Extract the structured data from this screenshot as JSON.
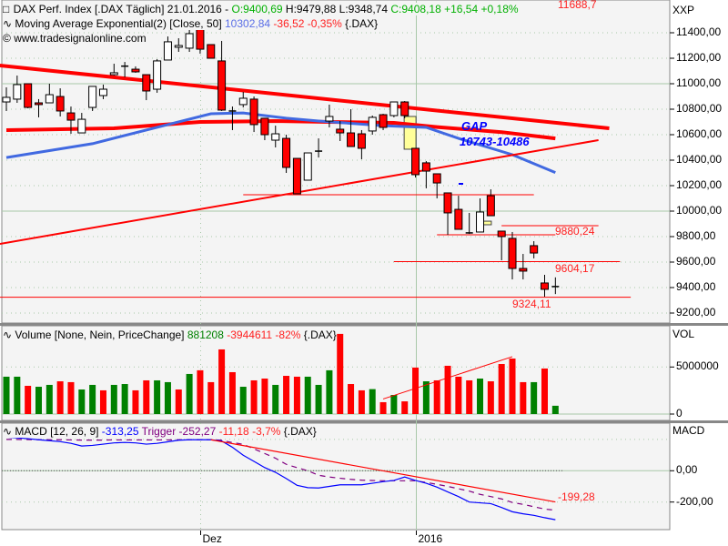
{
  "header": {
    "symbol_line": {
      "name": "DAX Perf. Index [.DAX  Täglich] 21.01.2016 -",
      "open": "O:9400,69",
      "high": "H:9479,88",
      "low": "L:9348,74",
      "close": "C:9408,18",
      "change": "+16,54",
      "change_pct": "+0,18%"
    },
    "ma_line": {
      "name": "Moving Average Exponential(2) [Close, 50]",
      "value": "10302,84",
      "change": "-36,52",
      "change_pct": "-0,35%",
      "symbol": "{.DAX}"
    },
    "watermark": "www.tradesignalonline.com",
    "top_cut_label": "11688,7"
  },
  "volume_header": {
    "name": "Volume [None, Nein, PriceChange]",
    "value": "881208",
    "change": "-3944611",
    "change_pct": "-82%",
    "symbol": "{.DAX}"
  },
  "macd_header": {
    "name": "MACD [12, 26, 9]",
    "value": "-313,25",
    "trigger_label": "Trigger",
    "trigger_value": "-252,27",
    "diff": "-11,18",
    "diff_pct": "-3,7%",
    "symbol": "{.DAX}"
  },
  "colors": {
    "up_candle": "#ffffff",
    "down_candle": "#ff0000",
    "vol_up": "#008000",
    "vol_down": "#ff0000",
    "ema": "#4169e1",
    "macd": "#0000ff",
    "trigger": "#800080",
    "trend": "#ff0000",
    "gap": "#ffff99",
    "bg": "#f4f4f4"
  },
  "chart_data": [
    {
      "type": "candlestick",
      "yaxis_label": "XXP",
      "yticks": [
        11400,
        11200,
        11000,
        10800,
        10600,
        10400,
        10200,
        10000,
        9800,
        9600,
        9400,
        9200
      ],
      "ytick_labels": [
        "11400,00",
        "11200,00",
        "11000,00",
        "10800,00",
        "10600,00",
        "10400,00",
        "10200,00",
        "10000,00",
        "9800,00",
        "9600,00",
        "9400,00",
        "9200,00"
      ],
      "ylim": [
        9130,
        11650
      ],
      "xtick_labels": [
        {
          "index": 18,
          "label": "Dez"
        },
        {
          "index": 38,
          "label": "2016"
        }
      ],
      "ohlc": [
        [
          10857,
          10971,
          10786,
          10893
        ],
        [
          10879,
          11064,
          10850,
          10993
        ],
        [
          11000,
          11000,
          10807,
          10814
        ],
        [
          10850,
          10879,
          10736,
          10836
        ],
        [
          10850,
          11000,
          10850,
          10914
        ],
        [
          10900,
          10964,
          10743,
          10786
        ],
        [
          10771,
          10821,
          10607,
          10714
        ],
        [
          10614,
          10771,
          10614,
          10721
        ],
        [
          10814,
          10979,
          10786,
          10979
        ],
        [
          10907,
          10993,
          10879,
          10957
        ],
        [
          11071,
          11157,
          11064,
          11086
        ],
        [
          11134,
          11171,
          11050,
          11138
        ],
        [
          11114,
          11136,
          11086,
          11093
        ],
        [
          11071,
          11071,
          10871,
          10943
        ],
        [
          10957,
          11193,
          10929,
          11179
        ],
        [
          11186,
          11371,
          11186,
          11329
        ],
        [
          11286,
          11357,
          11250,
          11300
        ],
        [
          11279,
          11443,
          11250,
          11393
        ],
        [
          11429,
          11443,
          11236,
          11271
        ],
        [
          11307,
          11307,
          11200,
          11200
        ],
        [
          11179,
          11336,
          10786,
          10793
        ],
        [
          10786,
          10821,
          10636,
          10779
        ],
        [
          10836,
          10936,
          10814,
          10886
        ],
        [
          10879,
          10900,
          10621,
          10679
        ],
        [
          10729,
          10729,
          10557,
          10600
        ],
        [
          10557,
          10671,
          10500,
          10607
        ],
        [
          10571,
          10600,
          10300,
          10343
        ],
        [
          10414,
          10414,
          10136,
          10136
        ],
        [
          10243,
          10457,
          10243,
          10457
        ],
        [
          10471,
          10571,
          10421,
          10467
        ],
        [
          10707,
          10836,
          10657,
          10743
        ],
        [
          10643,
          10707,
          10550,
          10614
        ],
        [
          10614,
          10800,
          10507,
          10507
        ],
        [
          10607,
          10636,
          10407,
          10493
        ],
        [
          10629,
          10750,
          10600,
          10736
        ],
        [
          10757,
          10764,
          10636,
          10657
        ],
        [
          10750,
          10857,
          10736,
          10857
        ],
        [
          10857,
          10864,
          10729,
          10750
        ],
        [
          10493,
          10493,
          10264,
          10286
        ],
        [
          10379,
          10393,
          10179,
          10314
        ],
        [
          10293,
          10293,
          10100,
          10221
        ],
        [
          10143,
          10143,
          9814,
          9986
        ],
        [
          10014,
          10121,
          9857,
          9857
        ],
        [
          9829,
          9986,
          9821,
          9821
        ],
        [
          9836,
          10100,
          9836,
          9993
        ],
        [
          10121,
          10171,
          9964,
          9964
        ],
        [
          9843,
          9843,
          9614,
          9800
        ],
        [
          9786,
          9836,
          9464,
          9550
        ],
        [
          9550,
          9664,
          9464,
          9529
        ],
        [
          9729,
          9764,
          9629,
          9671
        ],
        [
          9436,
          9500,
          9329,
          9386
        ],
        [
          9401,
          9480,
          9349,
          9408
        ]
      ],
      "ema50": [
        [
          0,
          10421
        ],
        [
          8,
          10529
        ],
        [
          15,
          10679
        ],
        [
          19,
          10764
        ],
        [
          22,
          10771
        ],
        [
          26,
          10729
        ],
        [
          29,
          10707
        ],
        [
          35,
          10671
        ],
        [
          39,
          10657
        ],
        [
          42,
          10571
        ],
        [
          47,
          10443
        ],
        [
          51,
          10303
        ]
      ],
      "red_ma": [
        [
          0,
          10636
        ],
        [
          10,
          10650
        ],
        [
          18,
          10700
        ],
        [
          25,
          10707
        ],
        [
          30,
          10700
        ],
        [
          36,
          10693
        ],
        [
          40,
          10660
        ],
        [
          46,
          10620
        ],
        [
          51,
          10571
        ]
      ],
      "trendlines": [
        {
          "from": [
            -0.6,
            11143
          ],
          "to": [
            56,
            10650
          ],
          "thick": true
        },
        {
          "from": [
            -0.6,
            9743
          ],
          "to": [
            55,
            10557
          ],
          "thick": false
        }
      ],
      "levels": [
        {
          "price": 10129,
          "from": 22,
          "to": 49,
          "label": ""
        },
        {
          "price": 9886,
          "from": 46,
          "to": 55,
          "label": "9880,24"
        },
        {
          "price": 9814,
          "from": 40,
          "to": 51,
          "label": ""
        },
        {
          "price": 9604,
          "from": 36,
          "to": 57,
          "label": "9604,17"
        },
        {
          "price": 9324,
          "from": -0.6,
          "to": 58,
          "label": "9324,11"
        }
      ],
      "gaps": [
        {
          "index": 37.5,
          "top": 10743,
          "bottom": 10486,
          "label_title": "GAP",
          "label_range": "10743-10486"
        },
        {
          "index": 44.5,
          "top": 9921,
          "bottom": 9893
        }
      ]
    },
    {
      "type": "bar",
      "yaxis_label": "VOL",
      "ytick_labels": [
        "5000000",
        "0"
      ],
      "yticks": [
        5000000,
        0
      ],
      "values": [
        3970000,
        3970000,
        3000000,
        2900000,
        3100000,
        3480000,
        3390000,
        2610000,
        3100000,
        2520000,
        3100000,
        3190000,
        2520000,
        3580000,
        3580000,
        3390000,
        2610000,
        4260000,
        4650000,
        3390000,
        6870000,
        4450000,
        2900000,
        3580000,
        3770000,
        3100000,
        4060000,
        3970000,
        3970000,
        3100000,
        4650000,
        8520000,
        3190000,
        2520000,
        2650000,
        1260000,
        2030000,
        1350000,
        4940000,
        3480000,
        3580000,
        5130000,
        3970000,
        3580000,
        3770000,
        3480000,
        5320000,
        5900000,
        3390000,
        3390000,
        4840000,
        881208
      ],
      "direction": [
        "up",
        "up",
        "down",
        "up",
        "up",
        "down",
        "down",
        "up",
        "up",
        "down",
        "up",
        "up",
        "down",
        "down",
        "up",
        "up",
        "down",
        "up",
        "down",
        "down",
        "down",
        "down",
        "up",
        "down",
        "down",
        "up",
        "down",
        "down",
        "up",
        "up",
        "up",
        "down",
        "down",
        "down",
        "up",
        "down",
        "up",
        "down",
        "down",
        "up",
        "down",
        "down",
        "down",
        "down",
        "up",
        "down",
        "down",
        "down",
        "down",
        "up",
        "down",
        "up"
      ],
      "trendline": {
        "from": [
          35,
          1600000
        ],
        "to": [
          47,
          6100000
        ]
      }
    },
    {
      "type": "line",
      "yaxis_label": "MACD",
      "ytick_labels": [
        "0,00",
        "-200,00"
      ],
      "yticks": [
        0,
        -200
      ],
      "macd": [
        215,
        210,
        205,
        198,
        192,
        186,
        175,
        158,
        162,
        170,
        178,
        181,
        178,
        170,
        175,
        185,
        195,
        198,
        198,
        198,
        190,
        150,
        99,
        60,
        20,
        -10,
        -50,
        -93,
        -108,
        -110,
        -100,
        -90,
        -90,
        -90,
        -80,
        -70,
        -62,
        -40,
        -62,
        -80,
        -105,
        -135,
        -165,
        -200,
        -205,
        -210,
        -235,
        -262,
        -275,
        -285,
        -300,
        -313
      ],
      "trigger": [
        200,
        200,
        199,
        198,
        198,
        198,
        197,
        196,
        196,
        196,
        197,
        197,
        197,
        197,
        197,
        197,
        198,
        198,
        198,
        198,
        195,
        180,
        169,
        140,
        110,
        80,
        41,
        20,
        0,
        -29,
        -40,
        -48,
        -55,
        -60,
        -62,
        -64,
        -64,
        -64,
        -64,
        -75,
        -87,
        -100,
        -115,
        -130,
        -151,
        -165,
        -180,
        -203,
        -215,
        -230,
        -245,
        -252
      ],
      "trendline": {
        "from": [
          19,
          198
        ],
        "to": [
          51,
          -199.28
        ],
        "label": "-199,28"
      }
    }
  ]
}
